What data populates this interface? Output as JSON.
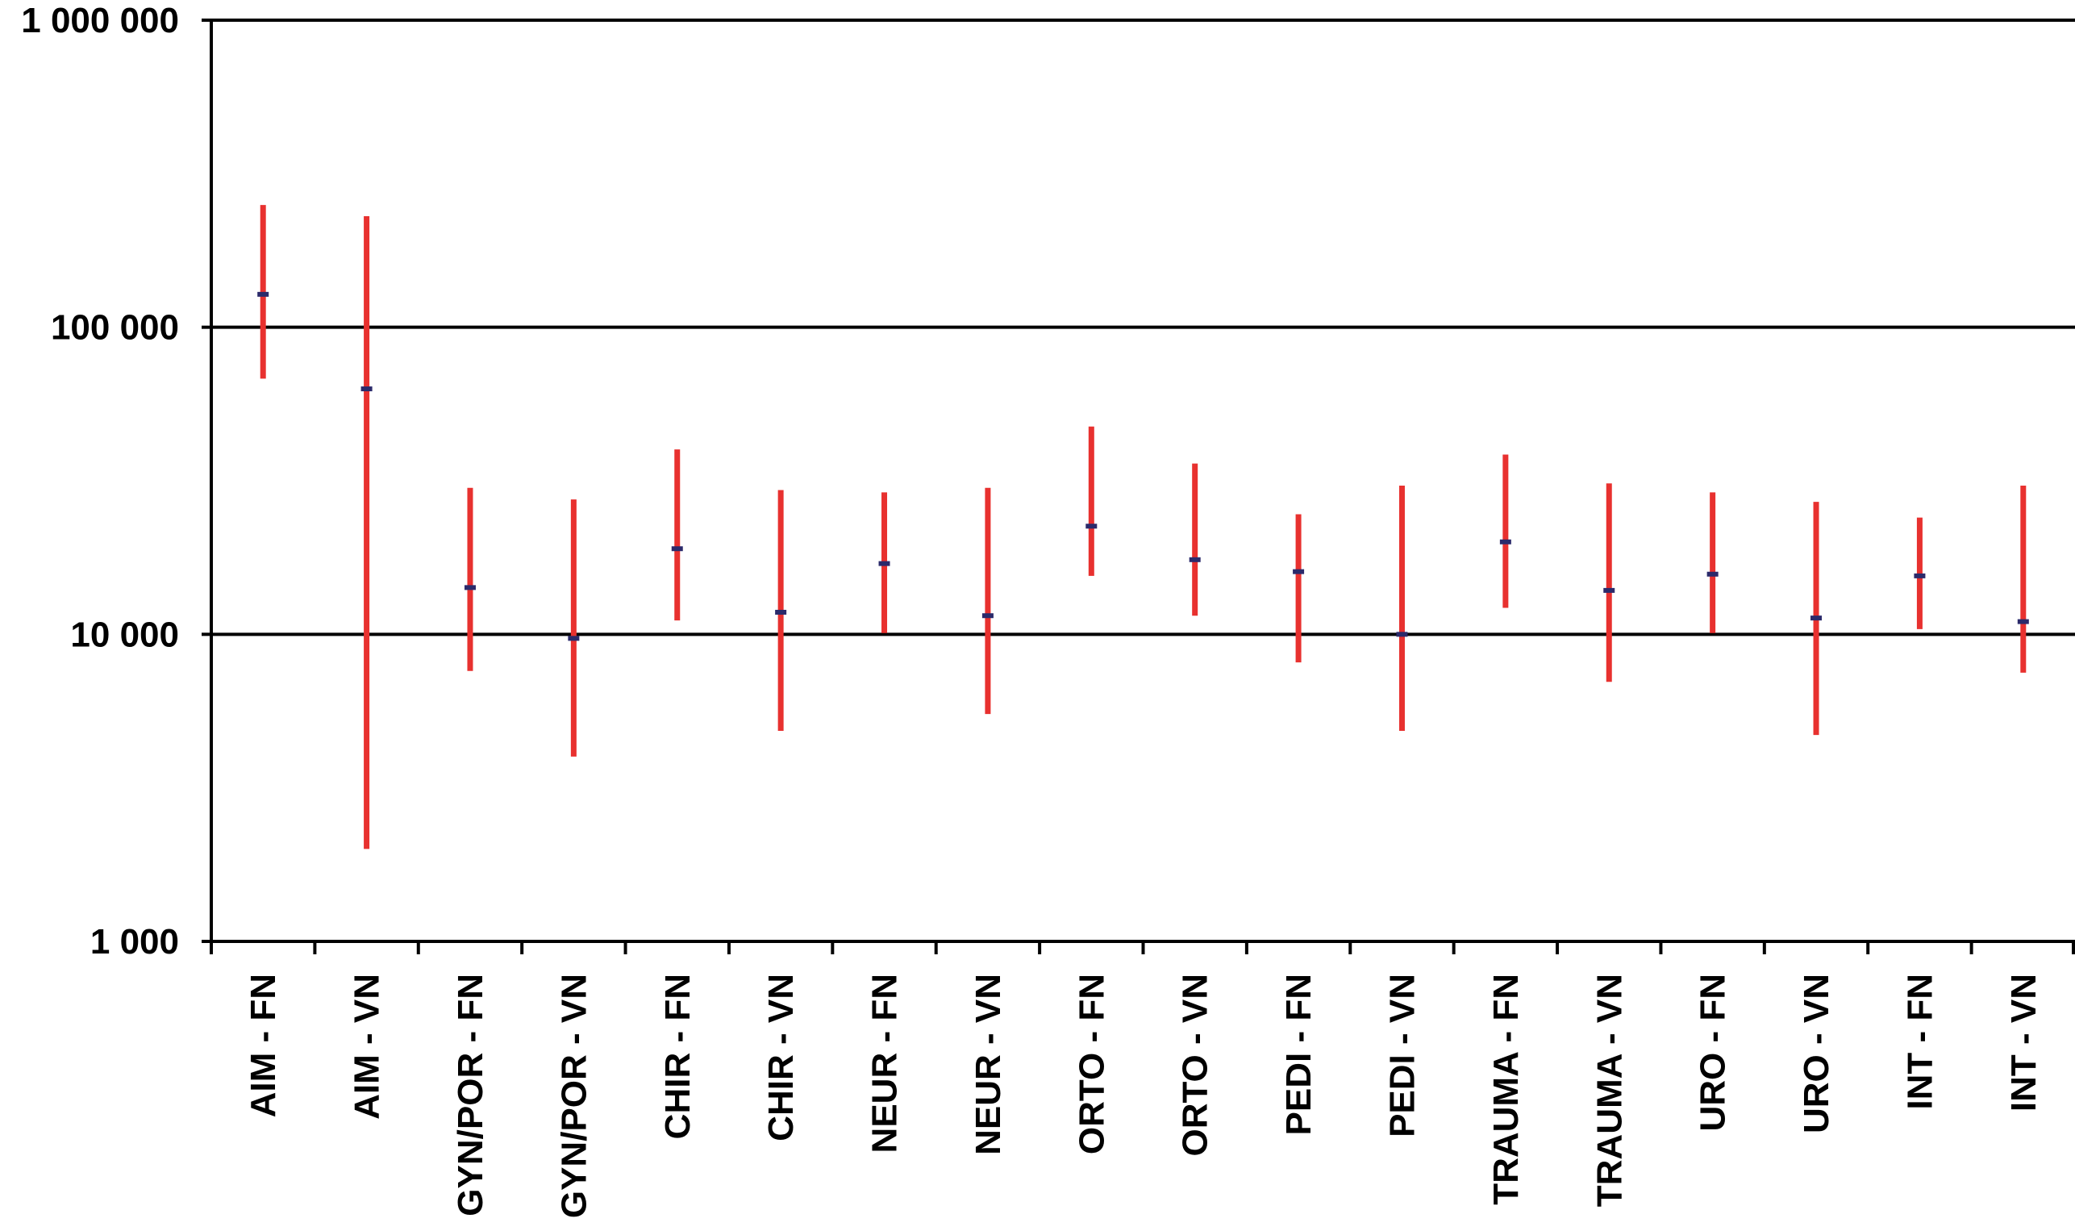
{
  "chart_data": {
    "type": "scatter",
    "subtype": "error-bar",
    "title": "",
    "xlabel": "",
    "ylabel": "",
    "yscale": "log",
    "ylim": [
      1000,
      1000000
    ],
    "yticks": [
      1000,
      10000,
      100000,
      1000000
    ],
    "ytick_labels": [
      "1 000",
      "10 000",
      "100 000",
      "1 000 000"
    ],
    "grid": "horizontal at 10 000 and 100 000",
    "colors": {
      "bar": "#e8312f",
      "point": "#2b2a6b",
      "axis": "#000000"
    },
    "categories": [
      "AIM - FN",
      "AIM - VN",
      "GYN/POR - FN",
      "GYN/POR - VN",
      "CHIR - FN",
      "CHIR - VN",
      "NEUR - FN",
      "NEUR - VN",
      "ORTO - FN",
      "ORTO - VN",
      "PEDI - FN",
      "PEDI - VN",
      "TRAUMA - FN",
      "TRAUMA - VN",
      "URO - FN",
      "URO - VN",
      "INT - FN",
      "INT - VN"
    ],
    "values": [
      128000,
      63000,
      14200,
      9700,
      19000,
      11800,
      17000,
      11500,
      22500,
      17500,
      16000,
      10000,
      20000,
      13900,
      15700,
      11300,
      15500,
      11000
    ],
    "lower": [
      68000,
      2000,
      7600,
      4000,
      11100,
      4850,
      10100,
      5500,
      15500,
      11500,
      8100,
      4850,
      12200,
      7000,
      10100,
      4700,
      10400,
      7500
    ],
    "upper": [
      250000,
      230000,
      30000,
      27500,
      40000,
      29500,
      29000,
      30000,
      47500,
      36000,
      24600,
      30500,
      38500,
      31000,
      29000,
      27000,
      24000,
      30500
    ]
  }
}
